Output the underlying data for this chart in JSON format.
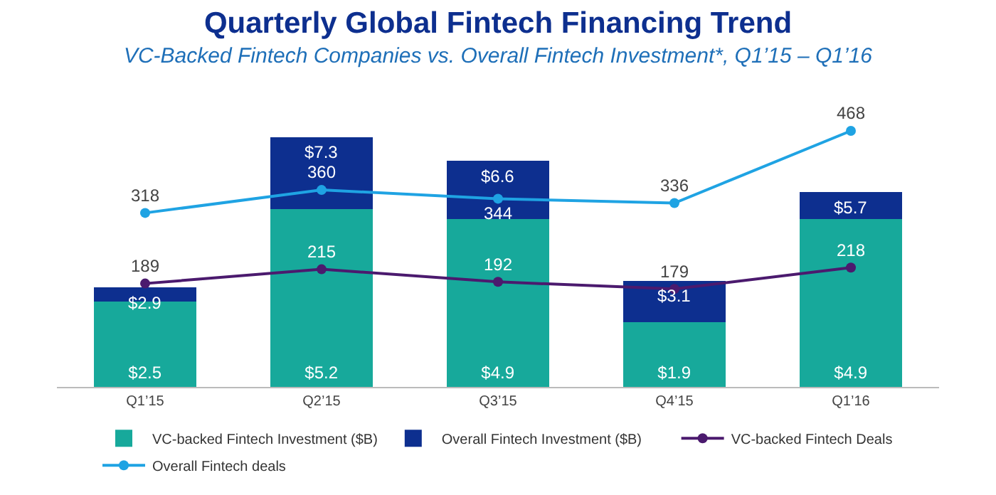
{
  "chart_data": {
    "type": "bar",
    "title": "Quarterly Global Fintech Financing Trend",
    "subtitle": "VC-Backed Fintech Companies vs. Overall Fintech Investment*, Q1’15 – Q1’16",
    "categories": [
      "Q1’15",
      "Q2’15",
      "Q3’15",
      "Q4’15",
      "Q1’16"
    ],
    "stacked": true,
    "legend": "bottom",
    "marker": "circle",
    "line_style": "solid",
    "tick_labels": "x",
    "totals": [
      "$2.9",
      "$7.3",
      "$6.6",
      "$3.1",
      "$5.7"
    ],
    "series": [
      {
        "name": "VC-backed Fintech Investment ($B)",
        "color": "#17a99b",
        "values": [
          2.5,
          5.2,
          4.9,
          1.9,
          4.9
        ],
        "value_labels": [
          "$2.5",
          "$5.2",
          "$4.9",
          "$1.9",
          "$4.9"
        ]
      },
      {
        "name": "Overall Fintech Investment ($B)",
        "color": "#0d2f8f",
        "values": [
          0.4,
          2.1,
          1.7,
          1.2,
          0.8
        ]
      },
      {
        "name": "VC-backed Fintech Deals",
        "type": "line",
        "axis": "y2",
        "color": "#4b1a6e",
        "values": [
          189,
          215,
          192,
          179,
          218
        ],
        "value_labels": [
          "189",
          "215",
          "192",
          "179",
          "218"
        ]
      },
      {
        "name": "Overall Fintech deals",
        "type": "line",
        "axis": "y2",
        "color": "#1fa3e3",
        "values": [
          318,
          360,
          344,
          336,
          468
        ],
        "value_labels": [
          "318",
          "360",
          "344",
          "336",
          "468"
        ]
      }
    ]
  }
}
